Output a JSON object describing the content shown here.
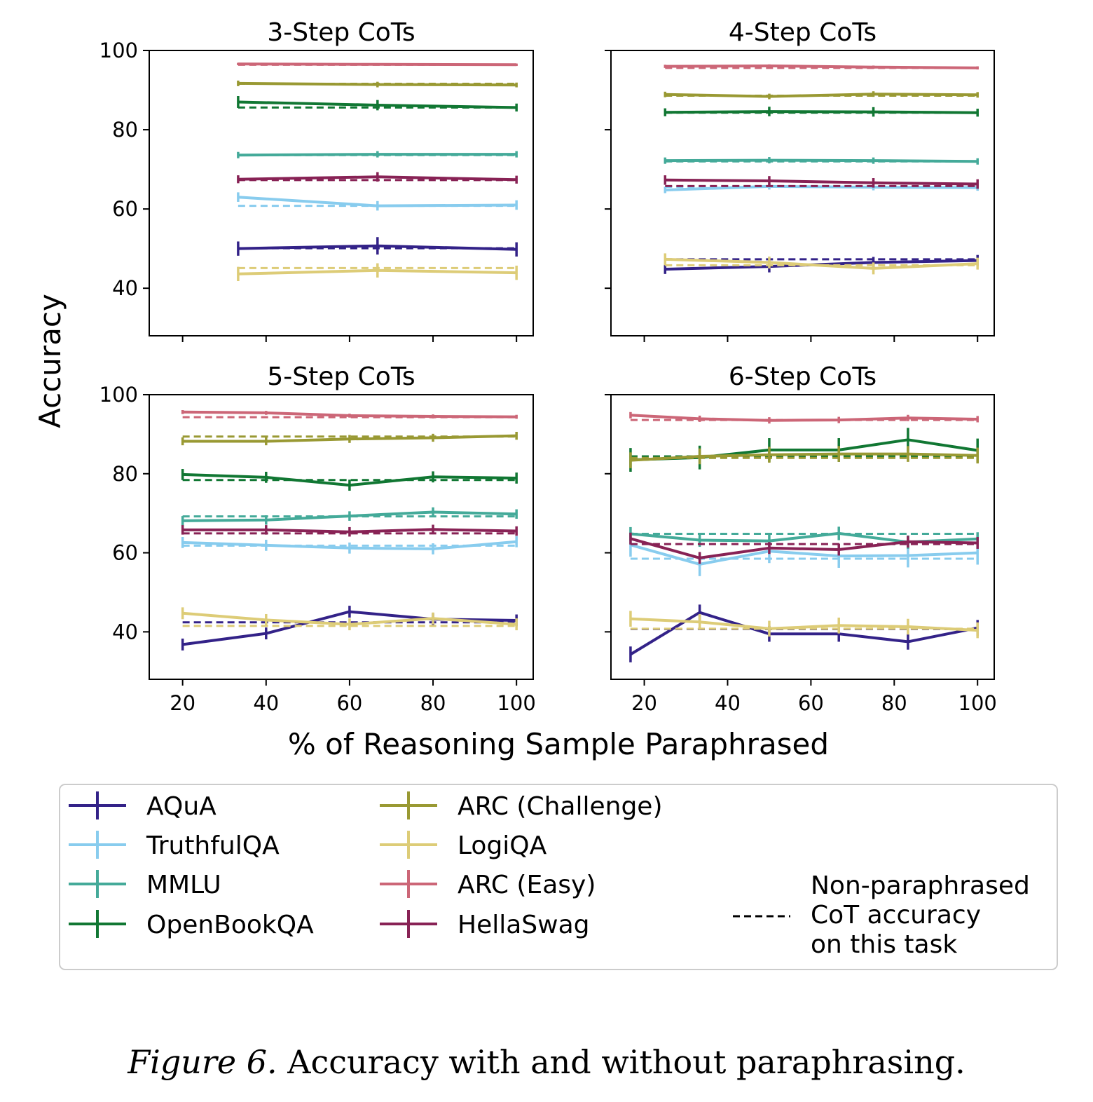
{
  "chart_data": [
    {
      "type": "line",
      "title": "3-Step CoTs",
      "x": [
        33.3,
        66.7,
        100
      ],
      "ylim": [
        28,
        100
      ],
      "xlim": [
        12,
        104
      ],
      "yticks": [
        40,
        60,
        80,
        100
      ],
      "xticks": [
        20,
        40,
        60,
        80,
        100
      ],
      "series": [
        {
          "name": "AQuA",
          "values": [
            50.0,
            50.7,
            49.8
          ],
          "err": [
            1.8,
            2.2,
            1.8
          ],
          "baseline": 50.1
        },
        {
          "name": "TruthfulQA",
          "values": [
            63.0,
            60.8,
            61.0
          ],
          "err": [
            1.2,
            1.2,
            1.2
          ],
          "baseline": 60.8
        },
        {
          "name": "MMLU",
          "values": [
            73.6,
            73.8,
            73.8
          ],
          "err": [
            0.8,
            0.8,
            0.8
          ],
          "baseline": 73.6
        },
        {
          "name": "OpenBookQA",
          "values": [
            87.0,
            86.2,
            85.6
          ],
          "err": [
            1.5,
            1.3,
            1.0
          ],
          "baseline": 85.6
        },
        {
          "name": "ARC (Challenge)",
          "values": [
            91.7,
            91.4,
            91.3
          ],
          "err": [
            0.7,
            0.7,
            0.6
          ],
          "baseline": 91.6
        },
        {
          "name": "LogiQA",
          "values": [
            43.6,
            44.5,
            43.9
          ],
          "err": [
            1.8,
            1.8,
            1.8
          ],
          "baseline": 45.1
        },
        {
          "name": "ARC (Easy)",
          "values": [
            96.6,
            96.5,
            96.4
          ],
          "err": [
            0.3,
            0.3,
            0.3
          ],
          "baseline": 96.4
        },
        {
          "name": "HellaSwag",
          "values": [
            67.5,
            68.1,
            67.4
          ],
          "err": [
            1.0,
            1.2,
            1.0
          ],
          "baseline": 67.3
        }
      ]
    },
    {
      "type": "line",
      "title": "4-Step CoTs",
      "x": [
        25,
        50,
        75,
        100
      ],
      "ylim": [
        28,
        100
      ],
      "xlim": [
        12,
        104
      ],
      "yticks": [
        40,
        60,
        80,
        100
      ],
      "xticks": [
        20,
        40,
        60,
        80,
        100
      ],
      "series": [
        {
          "name": "AQuA",
          "values": [
            44.8,
            45.5,
            46.5,
            47.0
          ],
          "err": [
            1.2,
            1.5,
            1.4,
            1.4
          ],
          "baseline": 47.3
        },
        {
          "name": "TruthfulQA",
          "values": [
            64.8,
            65.7,
            65.5,
            65.4
          ],
          "err": [
            0.8,
            0.8,
            0.8,
            0.8
          ],
          "baseline": 65.6
        },
        {
          "name": "MMLU",
          "values": [
            72.2,
            72.3,
            72.2,
            72.0
          ],
          "err": [
            0.8,
            0.8,
            0.8,
            0.8
          ],
          "baseline": 72.0
        },
        {
          "name": "OpenBookQA",
          "values": [
            84.4,
            84.6,
            84.5,
            84.3
          ],
          "err": [
            1.0,
            1.2,
            1.2,
            1.0
          ],
          "baseline": 84.3
        },
        {
          "name": "ARC (Challenge)",
          "values": [
            88.9,
            88.4,
            89.0,
            88.8
          ],
          "err": [
            0.7,
            0.7,
            0.7,
            0.7
          ],
          "baseline": 88.6
        },
        {
          "name": "LogiQA",
          "values": [
            47.3,
            46.5,
            45.0,
            46.2
          ],
          "err": [
            1.5,
            1.5,
            1.5,
            1.5
          ],
          "baseline": 45.8
        },
        {
          "name": "ARC (Easy)",
          "values": [
            96.0,
            96.1,
            95.8,
            95.6
          ],
          "err": [
            0.4,
            0.4,
            0.4,
            0.4
          ],
          "baseline": 95.6
        },
        {
          "name": "HellaSwag",
          "values": [
            67.3,
            67.1,
            66.6,
            66.3
          ],
          "err": [
            1.2,
            1.2,
            1.2,
            1.2
          ],
          "baseline": 65.8
        }
      ]
    },
    {
      "type": "line",
      "title": "5-Step CoTs",
      "x": [
        20,
        40,
        60,
        80,
        100
      ],
      "ylim": [
        28,
        100
      ],
      "xlim": [
        12,
        104
      ],
      "yticks": [
        40,
        60,
        80,
        100
      ],
      "xticks": [
        20,
        40,
        60,
        80,
        100
      ],
      "series": [
        {
          "name": "AQuA",
          "values": [
            36.8,
            39.6,
            45.1,
            43.2,
            42.9
          ],
          "err": [
            1.5,
            1.5,
            1.5,
            1.5,
            1.5
          ],
          "baseline": 42.4
        },
        {
          "name": "TruthfulQA",
          "values": [
            62.6,
            61.9,
            61.2,
            61.0,
            62.8
          ],
          "err": [
            1.4,
            1.4,
            1.4,
            1.4,
            1.4
          ],
          "baseline": 61.8
        },
        {
          "name": "MMLU",
          "values": [
            68.1,
            68.3,
            69.3,
            70.3,
            69.8
          ],
          "err": [
            1.2,
            1.2,
            1.2,
            1.2,
            1.2
          ],
          "baseline": 69.2
        },
        {
          "name": "OpenBookQA",
          "values": [
            79.8,
            79.1,
            77.1,
            79.2,
            78.9
          ],
          "err": [
            1.4,
            1.4,
            1.4,
            1.4,
            1.4
          ],
          "baseline": 78.4
        },
        {
          "name": "ARC (Challenge)",
          "values": [
            88.2,
            88.2,
            88.8,
            89.1,
            89.6
          ],
          "err": [
            1.0,
            1.0,
            1.0,
            1.0,
            1.0
          ],
          "baseline": 89.4
        },
        {
          "name": "LogiQA",
          "values": [
            44.7,
            43.0,
            41.9,
            43.4,
            41.9
          ],
          "err": [
            1.5,
            1.5,
            1.5,
            1.5,
            1.5
          ],
          "baseline": 41.5
        },
        {
          "name": "ARC (Easy)",
          "values": [
            95.6,
            95.4,
            94.7,
            94.5,
            94.4
          ],
          "err": [
            0.5,
            0.5,
            0.5,
            0.5,
            0.5
          ],
          "baseline": 94.3
        },
        {
          "name": "HellaSwag",
          "values": [
            65.8,
            65.8,
            65.3,
            65.9,
            65.5
          ],
          "err": [
            1.2,
            1.2,
            1.2,
            1.2,
            1.2
          ],
          "baseline": 64.9
        }
      ]
    },
    {
      "type": "line",
      "title": "6-Step CoTs",
      "x": [
        16.7,
        33.3,
        50,
        66.7,
        83.3,
        100
      ],
      "ylim": [
        28,
        100
      ],
      "xlim": [
        12,
        104
      ],
      "yticks": [
        40,
        60,
        80,
        100
      ],
      "xticks": [
        20,
        40,
        60,
        80,
        100
      ],
      "series": [
        {
          "name": "AQuA",
          "values": [
            34.3,
            44.9,
            39.5,
            39.5,
            37.5,
            41.0
          ],
          "err": [
            2.0,
            2.0,
            2.0,
            2.0,
            2.0,
            2.0
          ],
          "baseline": 40.7
        },
        {
          "name": "TruthfulQA",
          "values": [
            62.0,
            57.1,
            60.4,
            59.2,
            59.3,
            60.0
          ],
          "err": [
            3.0,
            3.0,
            3.0,
            3.0,
            3.0,
            3.0
          ],
          "baseline": 58.5
        },
        {
          "name": "MMLU",
          "values": [
            64.8,
            63.2,
            63.0,
            64.9,
            62.7,
            63.5
          ],
          "err": [
            1.7,
            1.7,
            1.7,
            1.7,
            1.7,
            1.7
          ],
          "baseline": 64.8
        },
        {
          "name": "OpenBookQA",
          "values": [
            83.5,
            84.1,
            86.0,
            86.0,
            88.6,
            85.9
          ],
          "err": [
            3.0,
            3.0,
            3.0,
            3.0,
            3.0,
            3.0
          ],
          "baseline": 84.4
        },
        {
          "name": "ARC (Challenge)",
          "values": [
            83.4,
            84.4,
            84.8,
            85.0,
            85.0,
            84.6
          ],
          "err": [
            2.0,
            2.0,
            2.0,
            2.0,
            2.0,
            2.0
          ],
          "baseline": 84.0
        },
        {
          "name": "LogiQA",
          "values": [
            43.3,
            42.5,
            40.8,
            41.6,
            41.3,
            40.4
          ],
          "err": [
            2.0,
            2.0,
            2.0,
            2.0,
            2.0,
            2.0
          ],
          "baseline": 40.8
        },
        {
          "name": "ARC (Easy)",
          "values": [
            94.8,
            93.9,
            93.5,
            93.6,
            94.1,
            93.8
          ],
          "err": [
            0.8,
            0.8,
            0.8,
            0.8,
            0.8,
            0.8
          ],
          "baseline": 93.6
        },
        {
          "name": "HellaSwag",
          "values": [
            63.6,
            58.7,
            61.2,
            60.8,
            62.8,
            62.5
          ],
          "err": [
            1.5,
            1.5,
            1.5,
            1.5,
            1.5,
            1.5
          ],
          "baseline": 62.2
        }
      ]
    }
  ],
  "colors": {
    "AQuA": "#332288",
    "TruthfulQA": "#88CCEE",
    "MMLU": "#44AA99",
    "OpenBookQA": "#117733",
    "ARC (Challenge)": "#999933",
    "LogiQA": "#DDCC77",
    "ARC (Easy)": "#CC6677",
    "HellaSwag": "#882255"
  },
  "axes": {
    "ylabel": "Accuracy",
    "xlabel": "% of Reasoning Sample Paraphrased"
  },
  "legend": {
    "col1": [
      "AQuA",
      "TruthfulQA",
      "MMLU",
      "OpenBookQA"
    ],
    "col2": [
      "ARC (Challenge)",
      "LogiQA",
      "ARC (Easy)",
      "HellaSwag"
    ],
    "baseline_label": [
      "Non-paraphrased",
      "CoT accuracy",
      "on this task"
    ]
  },
  "caption": {
    "label": "Figure 6.",
    "text": "Accuracy with and without paraphrasing."
  }
}
